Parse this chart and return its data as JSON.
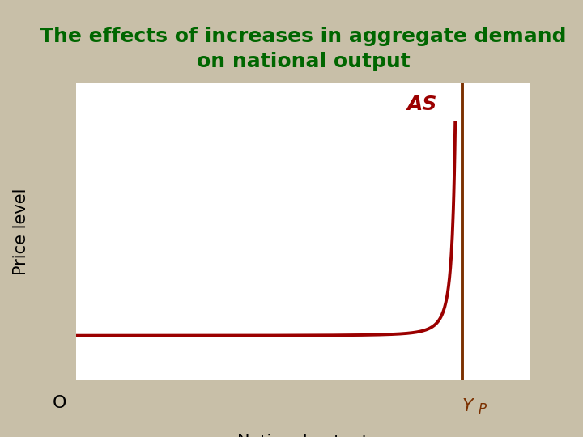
{
  "title_line1": "The effects of increases in aggregate demand",
  "title_line2": "on national output",
  "title_color": "#006600",
  "title_fontsize": 18,
  "xlabel": "National output",
  "ylabel": "Price level",
  "label_fontsize": 15,
  "bg_color": "#c8bfa8",
  "plot_bg_color": "#ffffff",
  "as_label": "AS",
  "yp_label": "Y",
  "yp_sub": "P",
  "o_label": "O",
  "as_curve_color": "#9b0000",
  "as_vertical_color": "#7b3000",
  "as_label_color": "#9b0000",
  "yp_label_color": "#7b3000",
  "curve_linewidth": 2.8,
  "vertical_linewidth": 2.8,
  "axis_color": "#000000",
  "axis_linewidth": 2.0
}
